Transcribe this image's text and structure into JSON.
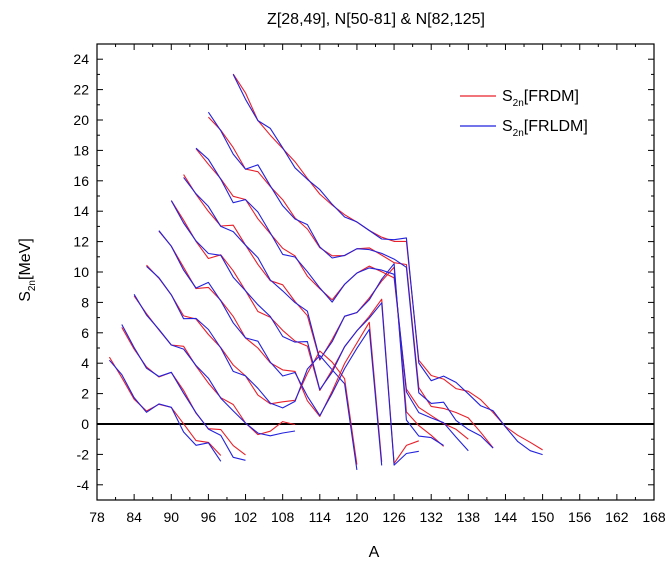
{
  "chart_data": {
    "type": "line",
    "title": "Z[28,49], N[50-81] & N[82,125]",
    "xlabel": "A",
    "ylabel": {
      "main": "S",
      "sub": "2n",
      "unit": "[MeV]"
    },
    "xlim": [
      78,
      168
    ],
    "ylim": [
      -5,
      25
    ],
    "xticks": [
      78,
      84,
      90,
      96,
      102,
      108,
      114,
      120,
      126,
      132,
      138,
      144,
      150,
      156,
      162,
      168
    ],
    "yticks": [
      -4,
      -2,
      0,
      2,
      4,
      6,
      8,
      10,
      12,
      14,
      16,
      18,
      20,
      22,
      24
    ],
    "grid": false,
    "legend_position": "top-right",
    "legend": [
      {
        "label_main": "S",
        "label_sub": "2n",
        "label_tail": "[FRDM]",
        "color": "#e8202a"
      },
      {
        "label_main": "S",
        "label_sub": "2n",
        "label_tail": "[FRLDM]",
        "color": "#2222dd"
      }
    ],
    "zero_line": 0,
    "colors": {
      "frdm": "#e8202a",
      "frldm": "#2222dd",
      "axis": "#000000"
    },
    "series": [
      {
        "curves": [
          [
            [
              80,
              4.2
            ],
            [
              82,
              3.0
            ],
            [
              84,
              1.8
            ],
            [
              86,
              1.0
            ],
            [
              88,
              1.2
            ],
            [
              90,
              0.9
            ],
            [
              92,
              0.0
            ],
            [
              94,
              -0.9
            ],
            [
              96,
              -1.1
            ],
            [
              98,
              -2.2
            ]
          ],
          [
            [
              82,
              6.3
            ],
            [
              84,
              5.1
            ],
            [
              86,
              3.9
            ],
            [
              88,
              3.0
            ],
            [
              90,
              3.2
            ],
            [
              92,
              2.2
            ],
            [
              94,
              0.9
            ],
            [
              96,
              -0.2
            ],
            [
              98,
              -0.5
            ],
            [
              100,
              -1.6
            ],
            [
              102,
              -2.0
            ]
          ],
          [
            [
              84,
              8.6
            ],
            [
              86,
              7.4
            ],
            [
              88,
              6.1
            ],
            [
              90,
              5.0
            ],
            [
              92,
              5.1
            ],
            [
              94,
              4.0
            ],
            [
              96,
              2.8
            ],
            [
              98,
              1.6
            ],
            [
              100,
              1.1
            ],
            [
              102,
              0.1
            ],
            [
              104,
              -0.5
            ],
            [
              106,
              -0.4
            ],
            [
              108,
              0.0
            ],
            [
              110,
              -0.2
            ]
          ],
          [
            [
              86,
              10.6
            ],
            [
              88,
              9.5
            ],
            [
              90,
              8.3
            ],
            [
              92,
              7.1
            ],
            [
              94,
              7.1
            ],
            [
              96,
              6.0
            ],
            [
              98,
              4.9
            ],
            [
              100,
              3.7
            ],
            [
              102,
              3.2
            ],
            [
              104,
              2.1
            ],
            [
              106,
              1.4
            ],
            [
              108,
              1.3
            ],
            [
              110,
              1.4
            ],
            [
              112,
              3.4
            ],
            [
              114,
              5.0
            ],
            [
              116,
              4.1
            ],
            [
              118,
              2.8
            ],
            [
              120,
              -2.8
            ]
          ],
          [
            [
              88,
              12.6
            ],
            [
              90,
              11.5
            ],
            [
              92,
              10.3
            ],
            [
              94,
              9.1
            ],
            [
              96,
              9.1
            ],
            [
              98,
              8.0
            ],
            [
              100,
              6.9
            ],
            [
              102,
              5.7
            ],
            [
              104,
              5.2
            ],
            [
              106,
              4.1
            ],
            [
              108,
              3.4
            ],
            [
              110,
              3.3
            ],
            [
              112,
              1.6
            ],
            [
              114,
              0.7
            ],
            [
              116,
              2.2
            ],
            [
              118,
              3.8
            ],
            [
              120,
              5.2
            ],
            [
              122,
              6.8
            ],
            [
              124,
              -2.3
            ]
          ],
          [
            [
              90,
              14.5
            ],
            [
              92,
              13.4
            ],
            [
              94,
              12.2
            ],
            [
              96,
              11.0
            ],
            [
              98,
              11.0
            ],
            [
              100,
              9.9
            ],
            [
              102,
              8.8
            ],
            [
              104,
              7.6
            ],
            [
              106,
              7.1
            ],
            [
              108,
              6.0
            ],
            [
              110,
              5.3
            ],
            [
              112,
              5.2
            ],
            [
              114,
              2.4
            ],
            [
              116,
              3.6
            ],
            [
              118,
              4.9
            ],
            [
              120,
              6.0
            ],
            [
              122,
              7.2
            ],
            [
              124,
              8.4
            ],
            [
              126,
              -2.6
            ],
            [
              128,
              -1.6
            ],
            [
              130,
              -1.2
            ]
          ],
          [
            [
              92,
              16.4
            ],
            [
              94,
              15.3
            ],
            [
              96,
              14.1
            ],
            [
              98,
              12.9
            ],
            [
              100,
              12.9
            ],
            [
              102,
              11.8
            ],
            [
              104,
              10.7
            ],
            [
              106,
              9.5
            ],
            [
              108,
              9.0
            ],
            [
              110,
              7.9
            ],
            [
              112,
              7.2
            ],
            [
              114,
              4.4
            ],
            [
              116,
              5.6
            ],
            [
              118,
              6.9
            ],
            [
              120,
              7.2
            ],
            [
              122,
              8.4
            ],
            [
              124,
              9.6
            ],
            [
              126,
              10.3
            ],
            [
              128,
              0.6
            ],
            [
              130,
              -0.2
            ],
            [
              132,
              -0.6
            ],
            [
              134,
              -1.3
            ]
          ],
          [
            [
              94,
              18.3
            ],
            [
              96,
              17.2
            ],
            [
              98,
              16.0
            ],
            [
              100,
              14.8
            ],
            [
              102,
              14.8
            ],
            [
              104,
              13.7
            ],
            [
              106,
              12.6
            ],
            [
              108,
              11.4
            ],
            [
              110,
              10.9
            ],
            [
              112,
              9.8
            ],
            [
              114,
              9.1
            ],
            [
              116,
              8.2
            ],
            [
              118,
              9.0
            ],
            [
              120,
              9.8
            ],
            [
              122,
              10.5
            ],
            [
              124,
              10.2
            ],
            [
              126,
              9.6
            ],
            [
              128,
              2.1
            ],
            [
              130,
              1.0
            ],
            [
              132,
              0.7
            ],
            [
              134,
              0.2
            ],
            [
              136,
              -0.4
            ],
            [
              138,
              -1.2
            ]
          ],
          [
            [
              96,
              20.3
            ],
            [
              98,
              19.2
            ],
            [
              100,
              18.0
            ],
            [
              102,
              16.8
            ],
            [
              104,
              16.8
            ],
            [
              106,
              15.7
            ],
            [
              108,
              14.6
            ],
            [
              110,
              13.4
            ],
            [
              112,
              12.9
            ],
            [
              114,
              11.8
            ],
            [
              116,
              11.1
            ],
            [
              118,
              10.9
            ],
            [
              120,
              11.4
            ],
            [
              122,
              11.7
            ],
            [
              124,
              11.3
            ],
            [
              126,
              10.6
            ],
            [
              128,
              10.3
            ],
            [
              130,
              2.3
            ],
            [
              132,
              1.3
            ],
            [
              134,
              1.2
            ],
            [
              136,
              0.7
            ],
            [
              138,
              0.2
            ],
            [
              140,
              -0.6
            ],
            [
              142,
              -1.4
            ]
          ],
          [
            [
              100,
              22.9
            ],
            [
              102,
              21.6
            ],
            [
              104,
              20.0
            ],
            [
              106,
              19.2
            ],
            [
              108,
              18.2
            ],
            [
              110,
              17.1
            ],
            [
              112,
              16.0
            ],
            [
              114,
              15.2
            ],
            [
              116,
              14.6
            ],
            [
              118,
              13.8
            ],
            [
              120,
              13.1
            ],
            [
              122,
              12.6
            ],
            [
              124,
              12.4
            ],
            [
              126,
              12.2
            ],
            [
              128,
              12.0
            ],
            [
              130,
              4.0
            ],
            [
              132,
              3.1
            ],
            [
              134,
              3.1
            ],
            [
              136,
              2.5
            ],
            [
              138,
              2.1
            ],
            [
              140,
              1.4
            ],
            [
              142,
              0.7
            ],
            [
              144,
              0.0
            ],
            [
              146,
              -0.6
            ],
            [
              148,
              -1.3
            ],
            [
              150,
              -1.9
            ]
          ]
        ]
      }
    ],
    "series_labels": [
      "FRDM",
      "FRLDM"
    ]
  }
}
